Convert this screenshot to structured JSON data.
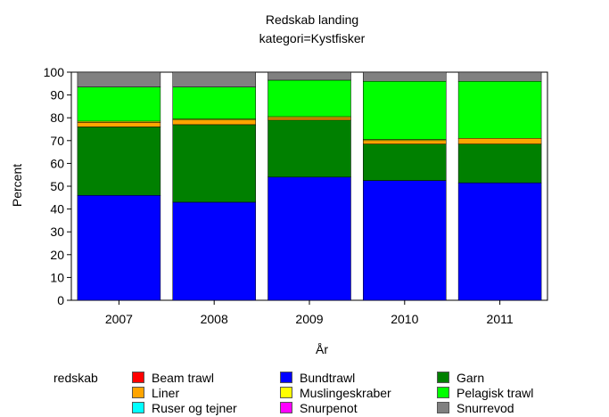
{
  "chart_data": {
    "type": "bar",
    "stacked": true,
    "title": "Redskab landing",
    "subtitle": "kategori=Kystfisker",
    "xlabel": "År",
    "ylabel": "Percent",
    "ylim": [
      0,
      100
    ],
    "yticks": [
      0,
      10,
      20,
      30,
      40,
      50,
      60,
      70,
      80,
      90,
      100
    ],
    "categories": [
      "2007",
      "2008",
      "2009",
      "2010",
      "2011"
    ],
    "legend_title": "redskab",
    "legend_placement": "bottom",
    "grid": false,
    "series": [
      {
        "name": "Beam trawl",
        "color": "#ff0000",
        "values": [
          0,
          0,
          0,
          0,
          0
        ]
      },
      {
        "name": "Bundtrawl",
        "color": "#0000ff",
        "values": [
          46,
          43,
          54,
          52.5,
          51.5
        ]
      },
      {
        "name": "Garn",
        "color": "#008000",
        "values": [
          30,
          34,
          25,
          16,
          17
        ]
      },
      {
        "name": "Liner",
        "color": "#ffa500",
        "values": [
          2,
          2,
          1,
          1.5,
          2.5
        ]
      },
      {
        "name": "Muslingeskraber",
        "color": "#ffff00",
        "values": [
          0.5,
          0.5,
          0.5,
          0.5,
          0
        ]
      },
      {
        "name": "Pelagisk trawl",
        "color": "#00ff00",
        "values": [
          15,
          14,
          16,
          25.5,
          25
        ]
      },
      {
        "name": "Ruser og tejner",
        "color": "#00ffff",
        "values": [
          0,
          0,
          0,
          0,
          0
        ]
      },
      {
        "name": "Snurpenot",
        "color": "#ff00ff",
        "values": [
          0,
          0,
          0,
          0,
          0
        ]
      },
      {
        "name": "Snurrevod",
        "color": "#808080",
        "values": [
          6.5,
          6.5,
          3.5,
          4,
          4
        ]
      }
    ],
    "legend_order": [
      "Beam trawl",
      "Bundtrawl",
      "Garn",
      "Liner",
      "Muslingeskraber",
      "Pelagisk trawl",
      "Ruser og tejner",
      "Snurpenot",
      "Snurrevod"
    ]
  }
}
